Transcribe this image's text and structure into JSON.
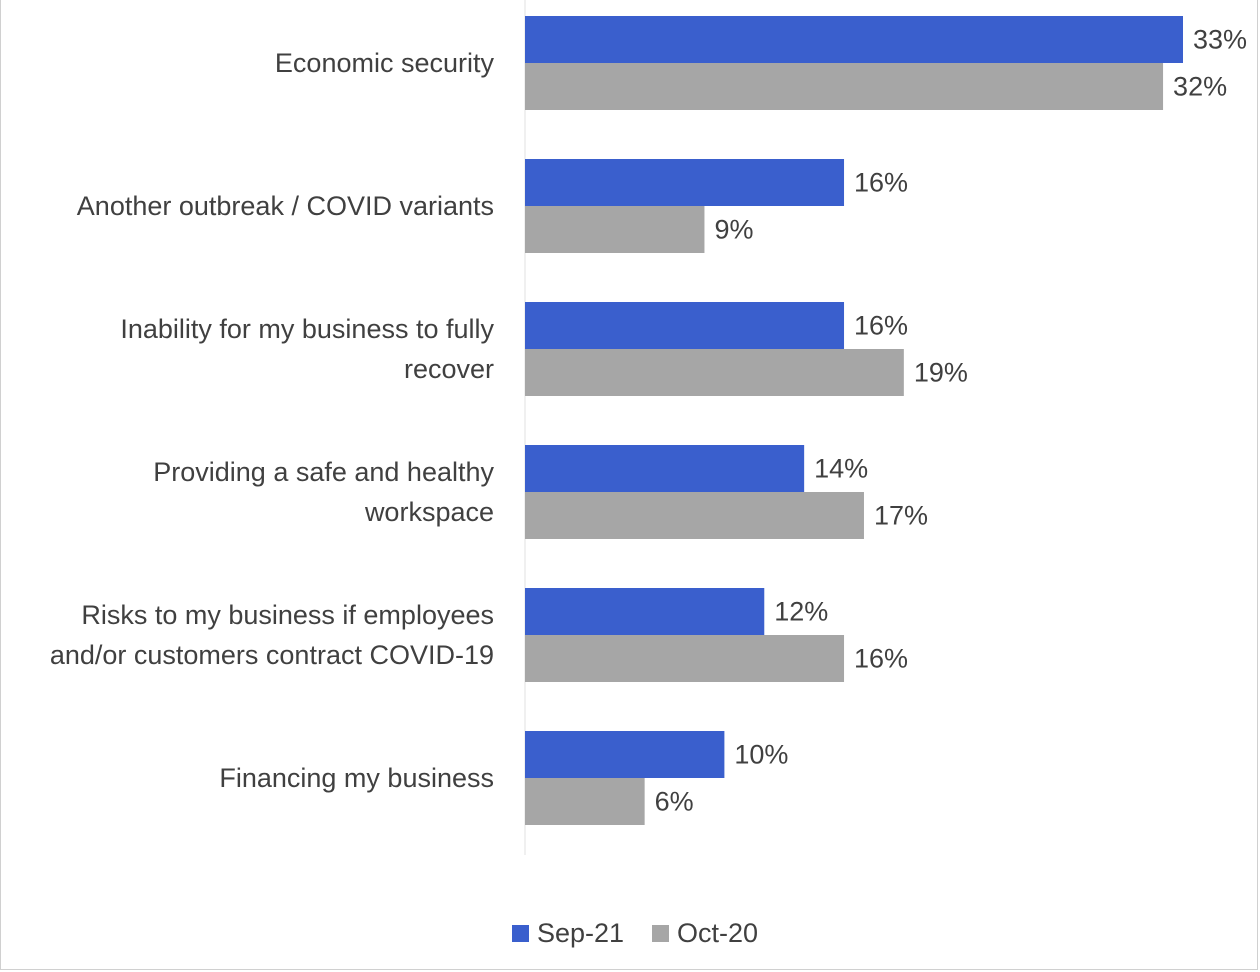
{
  "chart_data": {
    "type": "bar",
    "orientation": "horizontal",
    "categories": [
      "Economic security",
      "Another outbreak / COVID variants",
      "Inability for my business to fully recover",
      "Providing a safe and healthy workspace",
      "Risks to my business if employees and/or customers contract COVID-19",
      "Financing my business"
    ],
    "category_lines": [
      [
        "Economic security"
      ],
      [
        "Another outbreak / COVID variants"
      ],
      [
        "Inability for my business to fully",
        "recover"
      ],
      [
        "Providing a safe and healthy",
        "workspace"
      ],
      [
        "Risks to my business if employees",
        "and/or customers contract COVID-19"
      ],
      [
        "Financing my business"
      ]
    ],
    "series": [
      {
        "name": "Sep-21",
        "color": "#3a5fcd",
        "values": [
          33,
          16,
          16,
          14,
          12,
          10
        ],
        "labels": [
          "33%",
          "16%",
          "16%",
          "14%",
          "12%",
          "10%"
        ]
      },
      {
        "name": "Oct-20",
        "color": "#a6a6a6",
        "values": [
          32,
          9,
          19,
          17,
          16,
          6
        ],
        "labels": [
          "32%",
          "9%",
          "19%",
          "17%",
          "16%",
          "6%"
        ]
      }
    ],
    "xlim": [
      0,
      33
    ],
    "grid": false,
    "legend": "bottom-center",
    "title": "",
    "xlabel": "",
    "ylabel": ""
  }
}
